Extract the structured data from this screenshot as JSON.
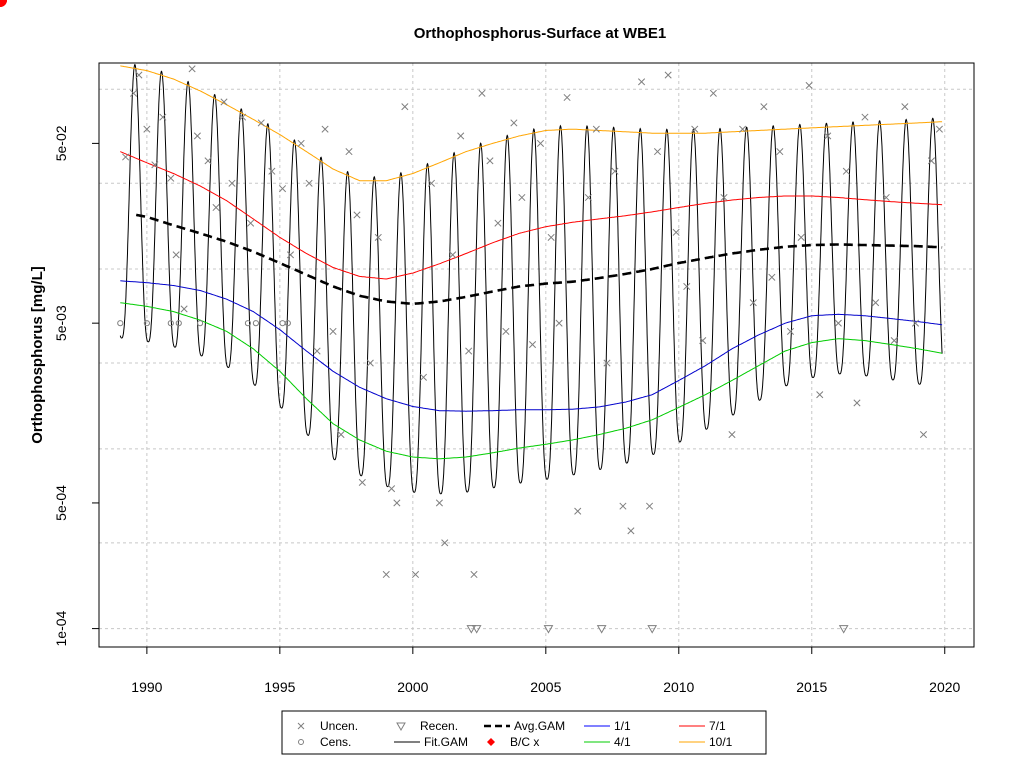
{
  "chart_data": {
    "type": "line",
    "title": "Orthophosphorus-Surface at WBE1",
    "xlabel": "",
    "ylabel": "Orthophosphorus [mg/L]",
    "y_scale": "log",
    "xlim": [
      1988.2,
      2021.1
    ],
    "ylim": [
      7.9e-05,
      0.14
    ],
    "x_ticks": [
      1990,
      1995,
      2000,
      2005,
      2010,
      2015,
      2020
    ],
    "x_tick_labels": [
      "1990",
      "1995",
      "2000",
      "2005",
      "2010",
      "2015",
      "2020"
    ],
    "y_ticks": [
      0.0001,
      0.0005,
      0.005,
      0.05
    ],
    "y_tick_labels": [
      "1e-04",
      "5e-04",
      "5e-03",
      "5e-02"
    ],
    "grid": true,
    "grid_y_values": [
      0.0001,
      0.0003,
      0.001,
      0.003,
      0.01,
      0.03,
      0.1
    ],
    "legend_position": "bottom",
    "legend": [
      {
        "label": "Uncen.",
        "symbol": "x",
        "color": "#7f7f7f"
      },
      {
        "label": "Recen.",
        "symbol": "triangle-down",
        "color": "#7f7f7f"
      },
      {
        "label": "Avg.GAM",
        "symbol": "dashed-line",
        "color": "#000000"
      },
      {
        "label": "1/1",
        "symbol": "line",
        "color": "#0000ff"
      },
      {
        "label": "7/1",
        "symbol": "line",
        "color": "#ff0000"
      },
      {
        "label": "Cens.",
        "symbol": "circle",
        "color": "#7f7f7f"
      },
      {
        "label": "Fit.GAM",
        "symbol": "line",
        "color": "#000000"
      },
      {
        "label": "B/C x",
        "symbol": "diamond",
        "color": "#ff0000"
      },
      {
        "label": "4/1",
        "symbol": "line",
        "color": "#00cc00"
      },
      {
        "label": "10/1",
        "symbol": "line",
        "color": "#ffa500"
      }
    ],
    "series": [
      {
        "name": "10/1",
        "color": "#ffa500",
        "x": [
          1989,
          1990,
          1991,
          1992,
          1993,
          1994,
          1995,
          1996,
          1997,
          1998,
          1999,
          2000,
          2001,
          2002,
          2003,
          2004,
          2005,
          2006,
          2007,
          2008,
          2009,
          2010,
          2011,
          2012,
          2013,
          2014,
          2015,
          2016,
          2017,
          2018,
          2019,
          2019.9
        ],
        "y": [
          0.135,
          0.127,
          0.114,
          0.098,
          0.082,
          0.068,
          0.056,
          0.045,
          0.036,
          0.031,
          0.031,
          0.034,
          0.039,
          0.045,
          0.05,
          0.055,
          0.059,
          0.06,
          0.059,
          0.058,
          0.057,
          0.057,
          0.057,
          0.058,
          0.059,
          0.06,
          0.061,
          0.062,
          0.063,
          0.064,
          0.065,
          0.066
        ]
      },
      {
        "name": "7/1",
        "color": "#ff0000",
        "x": [
          1989,
          1990,
          1991,
          1992,
          1993,
          1994,
          1995,
          1996,
          1997,
          1998,
          1999,
          2000,
          2001,
          2002,
          2003,
          2004,
          2005,
          2006,
          2007,
          2008,
          2009,
          2010,
          2011,
          2012,
          2013,
          2014,
          2015,
          2016,
          2017,
          2018,
          2019,
          2019.9
        ],
        "y": [
          0.045,
          0.039,
          0.034,
          0.029,
          0.024,
          0.019,
          0.015,
          0.0122,
          0.0102,
          0.0091,
          0.0088,
          0.0095,
          0.0107,
          0.0122,
          0.014,
          0.0158,
          0.0172,
          0.0182,
          0.019,
          0.0198,
          0.0208,
          0.022,
          0.0232,
          0.0242,
          0.025,
          0.0255,
          0.0255,
          0.025,
          0.0243,
          0.0237,
          0.0232,
          0.0228
        ]
      },
      {
        "name": "1/1",
        "color": "#0000cc",
        "x": [
          1989,
          1990,
          1991,
          1992,
          1993,
          1994,
          1995,
          1996,
          1997,
          1998,
          1999,
          2000,
          2001,
          2002,
          2003,
          2004,
          2005,
          2006,
          2007,
          2008,
          2009,
          2010,
          2011,
          2012,
          2013,
          2014,
          2015,
          2016,
          2017,
          2018,
          2019,
          2019.9
        ],
        "y": [
          0.0086,
          0.0084,
          0.0081,
          0.0076,
          0.0068,
          0.0058,
          0.0046,
          0.0035,
          0.0027,
          0.0022,
          0.0019,
          0.00172,
          0.00163,
          0.00162,
          0.00163,
          0.00165,
          0.00165,
          0.00166,
          0.00171,
          0.00182,
          0.002,
          0.0024,
          0.0029,
          0.0036,
          0.0043,
          0.005,
          0.0055,
          0.0056,
          0.0055,
          0.0053,
          0.0051,
          0.0049
        ]
      },
      {
        "name": "4/1",
        "color": "#00cc00",
        "x": [
          1989,
          1990,
          1991,
          1992,
          1993,
          1994,
          1995,
          1996,
          1997,
          1998,
          1999,
          2000,
          2001,
          2002,
          2003,
          2004,
          2005,
          2006,
          2007,
          2008,
          2009,
          2010,
          2011,
          2012,
          2013,
          2014,
          2015,
          2016,
          2017,
          2018,
          2019,
          2019.9
        ],
        "y": [
          0.0065,
          0.0062,
          0.0058,
          0.0052,
          0.0045,
          0.0036,
          0.0027,
          0.0019,
          0.00138,
          0.00112,
          0.00097,
          0.0009,
          0.00088,
          0.0009,
          0.00095,
          0.00101,
          0.00106,
          0.00112,
          0.0012,
          0.0013,
          0.00145,
          0.0017,
          0.002,
          0.0024,
          0.0029,
          0.0035,
          0.0039,
          0.0041,
          0.004,
          0.0038,
          0.0036,
          0.0034
        ]
      },
      {
        "name": "Avg.GAM",
        "color": "#000000",
        "x": [
          1989.6,
          1990,
          1991,
          1992,
          1993,
          1994,
          1995,
          1996,
          1997,
          1998,
          1999,
          2000,
          2001,
          2002,
          2003,
          2004,
          2005,
          2006,
          2007,
          2008,
          2009,
          2010,
          2011,
          2012,
          2013,
          2014,
          2015,
          2016,
          2017,
          2018,
          2019,
          2019.9
        ],
        "y": [
          0.02,
          0.0195,
          0.0175,
          0.0158,
          0.0142,
          0.0125,
          0.0108,
          0.0093,
          0.008,
          0.0071,
          0.0066,
          0.0064,
          0.0066,
          0.007,
          0.0075,
          0.008,
          0.0083,
          0.0085,
          0.0089,
          0.0094,
          0.01,
          0.0108,
          0.0115,
          0.0122,
          0.0128,
          0.0133,
          0.0136,
          0.0137,
          0.0136,
          0.0135,
          0.0134,
          0.0132
        ]
      }
    ],
    "fit_gam": {
      "name": "Fit.GAM",
      "color": "#000000",
      "x_start": 1989.0,
      "x_end": 2019.9,
      "peak_phase": 0.55
    },
    "bc_points": [
      {
        "x": 1990.15,
        "y": 0.0205
      },
      {
        "x": 2018.85,
        "y": 0.0132
      }
    ],
    "uncensored_points": [
      [
        1989.2,
        0.042
      ],
      [
        1989.5,
        0.095
      ],
      [
        1989.7,
        0.12
      ],
      [
        1990.0,
        0.06
      ],
      [
        1990.3,
        0.038
      ],
      [
        1990.6,
        0.07
      ],
      [
        1990.9,
        0.032
      ],
      [
        1991.1,
        0.012
      ],
      [
        1991.4,
        0.006
      ],
      [
        1991.7,
        0.13
      ],
      [
        1991.9,
        0.055
      ],
      [
        1992.3,
        0.04
      ],
      [
        1992.6,
        0.022
      ],
      [
        1992.9,
        0.085
      ],
      [
        1993.2,
        0.03
      ],
      [
        1993.6,
        0.07
      ],
      [
        1993.9,
        0.018
      ],
      [
        1994.3,
        0.065
      ],
      [
        1994.7,
        0.035
      ],
      [
        1995.1,
        0.028
      ],
      [
        1995.4,
        0.012
      ],
      [
        1995.8,
        0.05
      ],
      [
        1996.1,
        0.03
      ],
      [
        1996.4,
        0.0035
      ],
      [
        1996.7,
        0.06
      ],
      [
        1997.0,
        0.0045
      ],
      [
        1997.3,
        0.0012
      ],
      [
        1997.6,
        0.045
      ],
      [
        1997.9,
        0.02
      ],
      [
        1998.1,
        0.00065
      ],
      [
        1998.4,
        0.003
      ],
      [
        1998.7,
        0.015
      ],
      [
        1999.0,
        0.0002
      ],
      [
        1999.2,
        0.0006
      ],
      [
        1999.4,
        0.0005
      ],
      [
        1999.7,
        0.08
      ],
      [
        2000.1,
        0.0002
      ],
      [
        2000.4,
        0.0025
      ],
      [
        2000.7,
        0.03
      ],
      [
        2001.0,
        0.0005
      ],
      [
        2001.2,
        0.0003
      ],
      [
        2001.5,
        0.012
      ],
      [
        2001.8,
        0.055
      ],
      [
        2002.1,
        0.0035
      ],
      [
        2002.3,
        0.0002
      ],
      [
        2002.6,
        0.095
      ],
      [
        2002.9,
        0.04
      ],
      [
        2003.2,
        0.018
      ],
      [
        2003.5,
        0.0045
      ],
      [
        2003.8,
        0.065
      ],
      [
        2004.1,
        0.025
      ],
      [
        2004.5,
        0.0038
      ],
      [
        2004.8,
        0.05
      ],
      [
        2005.2,
        0.015
      ],
      [
        2005.5,
        0.005
      ],
      [
        2005.8,
        0.09
      ],
      [
        2006.2,
        0.00045
      ],
      [
        2006.6,
        0.025
      ],
      [
        2006.9,
        0.06
      ],
      [
        2007.3,
        0.003
      ],
      [
        2007.6,
        0.035
      ],
      [
        2007.9,
        0.00048
      ],
      [
        2008.2,
        0.00035
      ],
      [
        2008.6,
        0.11
      ],
      [
        2008.9,
        0.00048
      ],
      [
        2009.2,
        0.045
      ],
      [
        2009.6,
        0.12
      ],
      [
        2009.9,
        0.016
      ],
      [
        2010.3,
        0.008
      ],
      [
        2010.6,
        0.06
      ],
      [
        2010.9,
        0.004
      ],
      [
        2011.3,
        0.095
      ],
      [
        2011.7,
        0.025
      ],
      [
        2012.0,
        0.0012
      ],
      [
        2012.4,
        0.06
      ],
      [
        2012.8,
        0.0065
      ],
      [
        2013.2,
        0.08
      ],
      [
        2013.5,
        0.009
      ],
      [
        2013.8,
        0.045
      ],
      [
        2014.2,
        0.0045
      ],
      [
        2014.6,
        0.015
      ],
      [
        2014.9,
        0.105
      ],
      [
        2015.3,
        0.002
      ],
      [
        2015.6,
        0.055
      ],
      [
        2016.0,
        0.005
      ],
      [
        2016.3,
        0.035
      ],
      [
        2016.7,
        0.0018
      ],
      [
        2017.0,
        0.07
      ],
      [
        2017.4,
        0.0065
      ],
      [
        2017.8,
        0.025
      ],
      [
        2018.1,
        0.004
      ],
      [
        2018.5,
        0.08
      ],
      [
        2018.9,
        0.005
      ],
      [
        2019.2,
        0.0012
      ],
      [
        2019.5,
        0.04
      ],
      [
        2019.8,
        0.06
      ]
    ],
    "censored_points": [
      [
        1989.0,
        0.005
      ],
      [
        1990.0,
        0.005
      ],
      [
        1990.9,
        0.005
      ],
      [
        1991.2,
        0.005
      ],
      [
        1992.0,
        0.005
      ],
      [
        1993.8,
        0.005
      ],
      [
        1994.1,
        0.005
      ],
      [
        1995.1,
        0.005
      ],
      [
        1995.3,
        0.005
      ]
    ],
    "recensored_points": [
      [
        2002.2,
        0.0001
      ],
      [
        2002.4,
        0.0001
      ],
      [
        2005.1,
        0.0001
      ],
      [
        2007.1,
        0.0001
      ],
      [
        2009.0,
        0.0001
      ],
      [
        2016.2,
        0.0001
      ]
    ]
  }
}
